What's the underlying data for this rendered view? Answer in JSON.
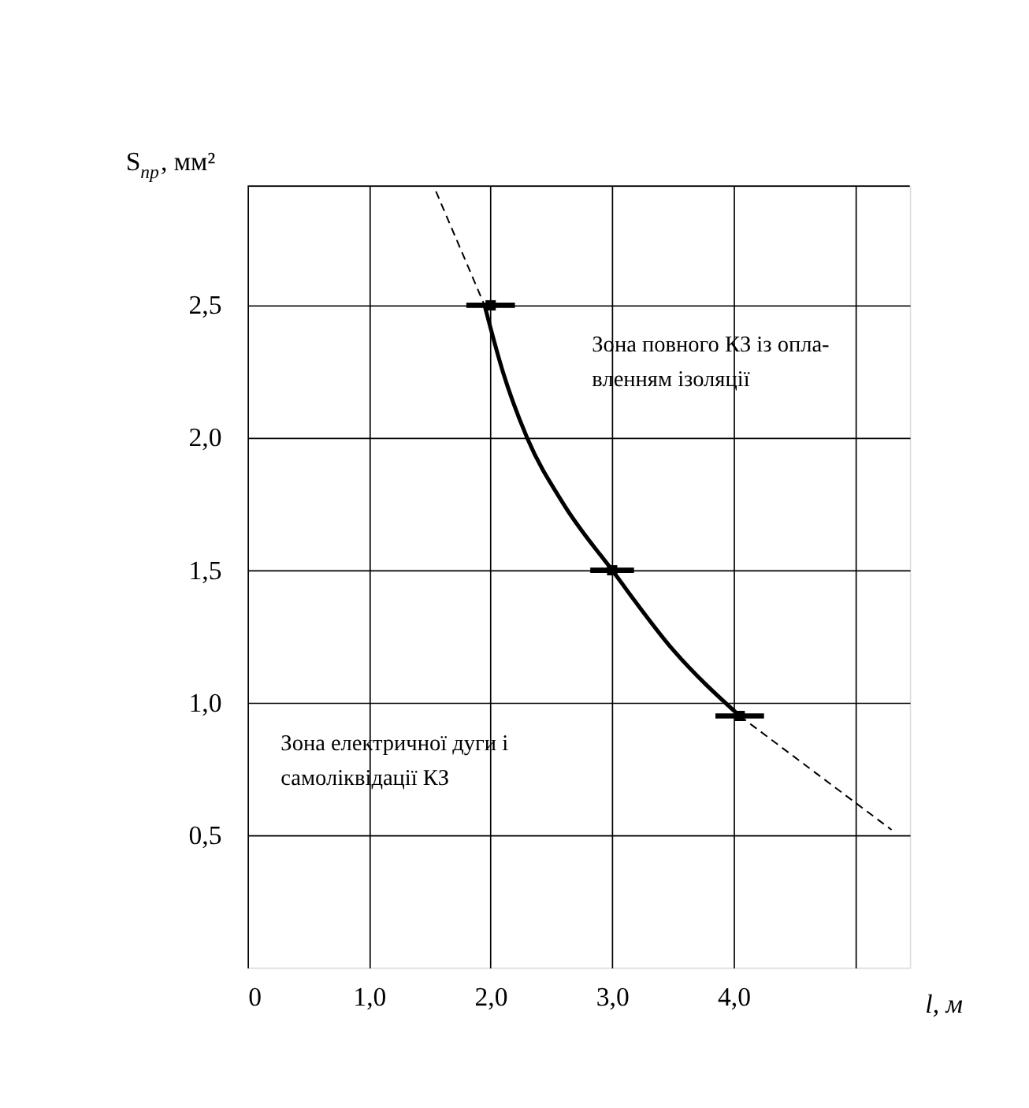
{
  "chart_data": {
    "type": "line",
    "xlabel": "l, м",
    "ylabel": "S$_{пр}$, мм²",
    "xlim": [
      0,
      5.45
    ],
    "ylim": [
      0,
      2.95
    ],
    "xticks": [
      {
        "value": 0,
        "label": "0"
      },
      {
        "value": 1,
        "label": "1,0"
      },
      {
        "value": 2,
        "label": "2,0"
      },
      {
        "value": 3,
        "label": "3,0"
      },
      {
        "value": 4,
        "label": "4,0"
      },
      {
        "value": 5,
        "label": null
      }
    ],
    "yticks": [
      {
        "value": 0.5,
        "label": "0,5"
      },
      {
        "value": 1,
        "label": "1,0"
      },
      {
        "value": 1.5,
        "label": "1,5"
      },
      {
        "value": 2,
        "label": "2,0"
      },
      {
        "value": 2.5,
        "label": "2,5"
      }
    ],
    "grid": true,
    "series": [
      {
        "color": "#000000",
        "line_style": "solid",
        "x": [
          1.95,
          2.1,
          2.3,
          2.6,
          3.0,
          3.5,
          4.05
        ],
        "values": [
          2.5,
          2.25,
          2.0,
          1.75,
          1.5,
          1.2,
          0.95
        ]
      },
      {
        "color": "#000000",
        "line_style": "dashed",
        "x": [
          1.55,
          1.95
        ],
        "values": [
          2.93,
          2.5
        ]
      },
      {
        "color": "#000000",
        "line_style": "dashed",
        "x": [
          4.05,
          5.3
        ],
        "values": [
          0.95,
          0.52
        ]
      },
      {
        "type": "scatter",
        "color": "#000000",
        "marker": "square",
        "x": [
          2.0,
          3.0,
          4.05
        ],
        "values": [
          2.5,
          1.5,
          0.95
        ],
        "xerrors": [
          0.2,
          0.18,
          0.2
        ]
      }
    ],
    "annotations": [
      "Зона повного КЗ із опла-\nвленням ізоляції",
      "Зона електричної дуги і\nсамоліквідації КЗ"
    ]
  }
}
